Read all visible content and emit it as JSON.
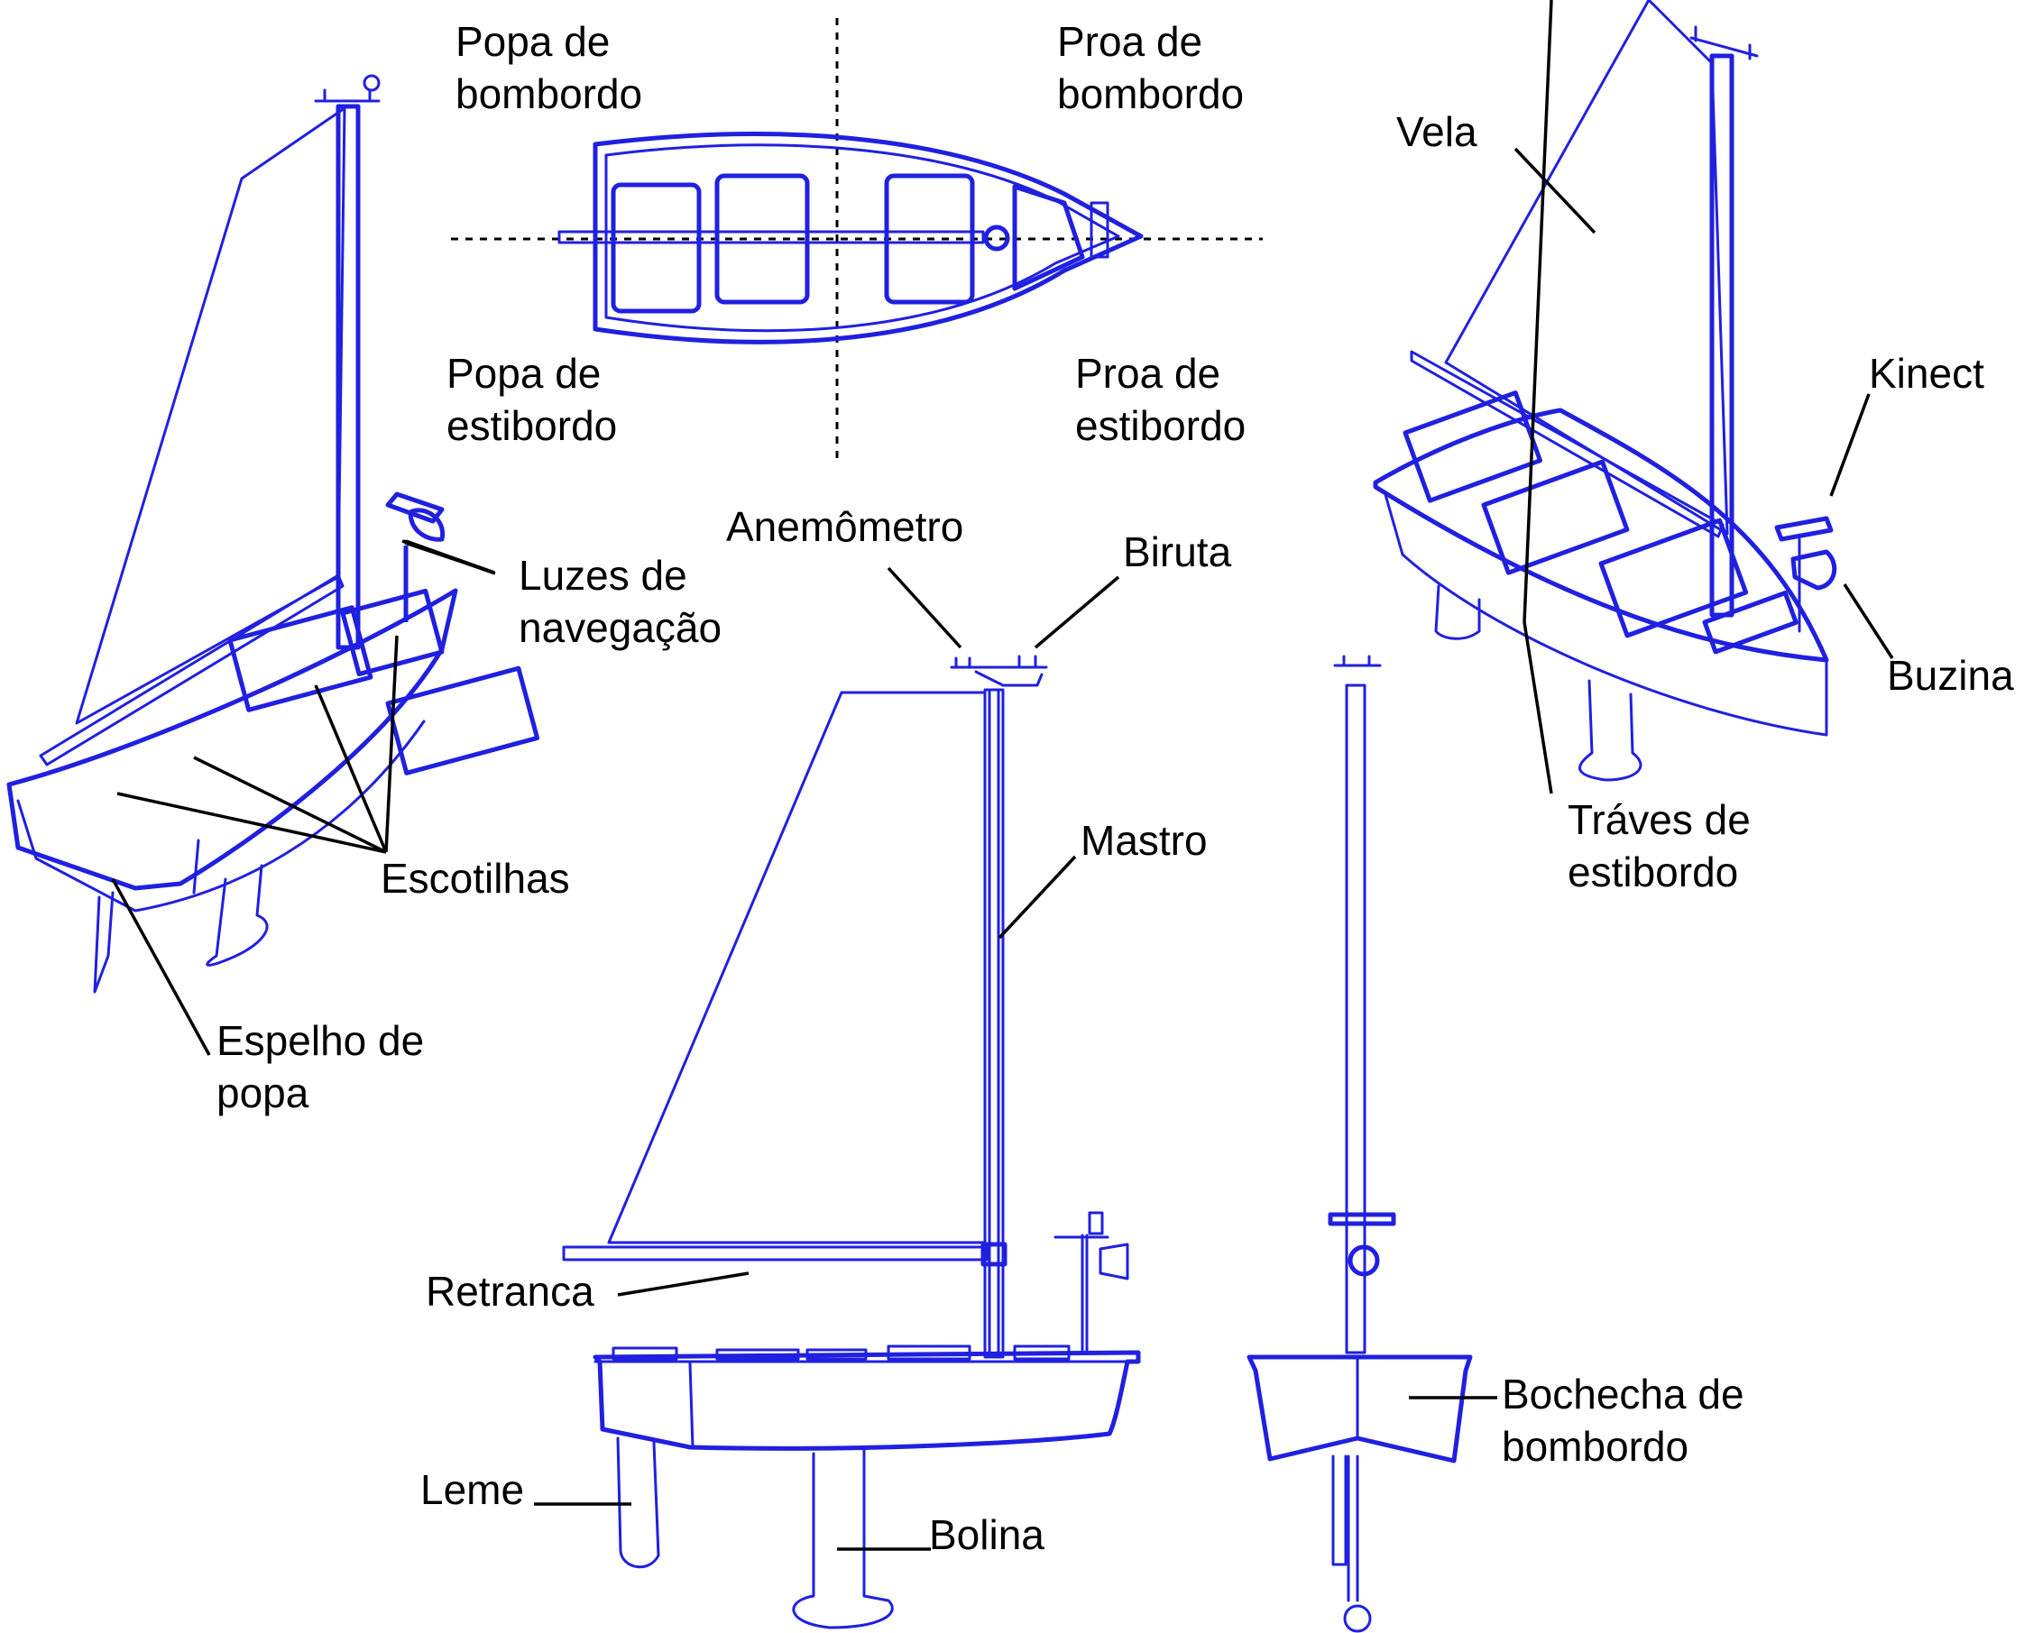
{
  "colors": {
    "drawing": "#2020e0",
    "labels": "#000000",
    "background": "#ffffff"
  },
  "labels": {
    "popa_bombordo": [
      "Popa de",
      "bombordo"
    ],
    "proa_bombordo": [
      "Proa de",
      "bombordo"
    ],
    "popa_estibordo": [
      "Popa de",
      "estibordo"
    ],
    "proa_estibordo": [
      "Proa de",
      "estibordo"
    ],
    "vela": "Vela",
    "kinect": "Kinect",
    "buzina": "Buzina",
    "traves_estibordo": [
      "Tráves de",
      "estibordo"
    ],
    "luzes_navegacao": [
      "Luzes de",
      "navegação"
    ],
    "escotilhas": "Escotilhas",
    "espelho_popa": [
      "Espelho de",
      "popa"
    ],
    "anemometro": "Anemômetro",
    "biruta": "Biruta",
    "mastro": "Mastro",
    "retranca": "Retranca",
    "leme": "Leme",
    "bolina": "Bolina",
    "bochecha_bombordo": [
      "Bochecha de",
      "bombordo"
    ]
  }
}
